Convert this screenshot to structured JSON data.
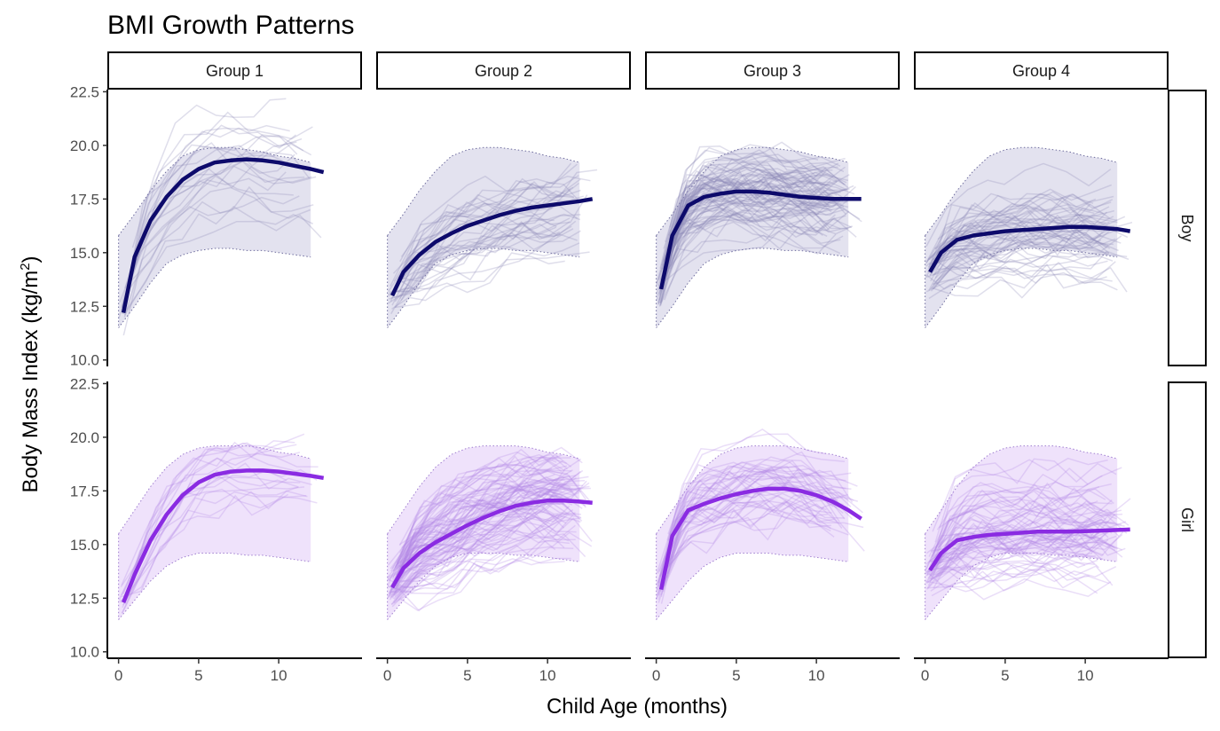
{
  "chart_data": {
    "type": "line",
    "title": "BMI Growth Patterns",
    "xlabel": "Child Age (months)",
    "ylabel": "Body Mass Index (kg/m",
    "ylabel_superscript": "2",
    "ylabel_suffix": ")",
    "xlim": [
      -0.7,
      15.2
    ],
    "ylim": [
      9.7,
      22.6
    ],
    "x_ticks": [
      0,
      5,
      10
    ],
    "x_tick_labels": [
      "0",
      "5",
      "10"
    ],
    "y_ticks": [
      10.0,
      12.5,
      15.0,
      17.5,
      20.0,
      22.5
    ],
    "y_tick_labels": [
      "10.0",
      "12.5",
      "15.0",
      "17.5",
      "20.0",
      "22.5"
    ],
    "grid": false,
    "columns": [
      "Group 1",
      "Group 2",
      "Group 3",
      "Group 4"
    ],
    "rows": [
      "Boy",
      "Girl"
    ],
    "colors": {
      "Boy": {
        "line": "#0d0a6b",
        "band": "#e3e2ef",
        "ind": "#8c8ab8",
        "dots": "#6f6d9e"
      },
      "Girl": {
        "line": "#8a2be2",
        "band": "#efe2fb",
        "ind": "#b58ae6",
        "dots": "#a07fd0"
      }
    },
    "individual_counts": [
      [
        22,
        35,
        80,
        55
      ],
      [
        18,
        90,
        45,
        70
      ]
    ],
    "band_x": [
      0,
      1,
      2,
      3,
      4,
      5,
      6,
      7,
      8,
      9,
      10,
      11,
      12
    ],
    "panels": [
      {
        "row": "Boy",
        "column": "Group 1",
        "band_upper": [
          15.8,
          16.8,
          17.9,
          18.8,
          19.5,
          19.8,
          19.9,
          19.9,
          19.8,
          19.7,
          19.5,
          19.4,
          19.2
        ],
        "band_lower": [
          11.5,
          12.5,
          13.6,
          14.5,
          14.9,
          15.1,
          15.2,
          15.2,
          15.1,
          15.1,
          15.0,
          14.9,
          14.8
        ],
        "mean_x": [
          0.3,
          1,
          2,
          3,
          4,
          5,
          6,
          7,
          8,
          9,
          10,
          11,
          12,
          12.8
        ],
        "mean_y": [
          12.2,
          14.8,
          16.5,
          17.6,
          18.4,
          18.9,
          19.2,
          19.3,
          19.35,
          19.3,
          19.2,
          19.05,
          18.9,
          18.75
        ]
      },
      {
        "row": "Boy",
        "column": "Group 2",
        "band_upper": [
          15.8,
          16.8,
          17.9,
          18.8,
          19.5,
          19.8,
          19.9,
          19.9,
          19.8,
          19.7,
          19.5,
          19.4,
          19.2
        ],
        "band_lower": [
          11.5,
          12.5,
          13.6,
          14.5,
          14.9,
          15.1,
          15.2,
          15.2,
          15.1,
          15.1,
          15.0,
          14.9,
          14.8
        ],
        "mean_x": [
          0.3,
          1,
          2,
          3,
          4,
          5,
          6,
          7,
          8,
          9,
          10,
          11,
          12,
          12.8
        ],
        "mean_y": [
          13.0,
          14.1,
          14.9,
          15.5,
          15.9,
          16.25,
          16.5,
          16.75,
          16.95,
          17.1,
          17.2,
          17.3,
          17.4,
          17.5
        ]
      },
      {
        "row": "Boy",
        "column": "Group 3",
        "band_upper": [
          15.8,
          16.8,
          17.9,
          18.8,
          19.5,
          19.8,
          19.9,
          19.9,
          19.8,
          19.7,
          19.5,
          19.4,
          19.2
        ],
        "band_lower": [
          11.5,
          12.5,
          13.6,
          14.5,
          14.9,
          15.1,
          15.2,
          15.2,
          15.1,
          15.1,
          15.0,
          14.9,
          14.8
        ],
        "mean_x": [
          0.3,
          1,
          2,
          3,
          4,
          5,
          6,
          7,
          8,
          9,
          10,
          11,
          12,
          12.8
        ],
        "mean_y": [
          13.3,
          15.8,
          17.2,
          17.6,
          17.75,
          17.85,
          17.85,
          17.8,
          17.7,
          17.6,
          17.55,
          17.5,
          17.5,
          17.5
        ]
      },
      {
        "row": "Boy",
        "column": "Group 4",
        "band_upper": [
          15.8,
          16.8,
          17.9,
          18.8,
          19.5,
          19.8,
          19.9,
          19.9,
          19.8,
          19.7,
          19.5,
          19.4,
          19.2
        ],
        "band_lower": [
          11.5,
          12.5,
          13.6,
          14.5,
          14.9,
          15.1,
          15.2,
          15.2,
          15.1,
          15.1,
          15.0,
          14.9,
          14.8
        ],
        "mean_x": [
          0.3,
          1,
          2,
          3,
          4,
          5,
          6,
          7,
          8,
          9,
          10,
          11,
          12,
          12.8
        ],
        "mean_y": [
          14.1,
          15.0,
          15.6,
          15.8,
          15.9,
          16.0,
          16.05,
          16.1,
          16.15,
          16.2,
          16.2,
          16.15,
          16.1,
          16.0
        ]
      },
      {
        "row": "Girl",
        "column": "Group 1",
        "band_upper": [
          15.5,
          16.6,
          17.7,
          18.6,
          19.2,
          19.5,
          19.6,
          19.6,
          19.6,
          19.5,
          19.3,
          19.2,
          19.0
        ],
        "band_lower": [
          11.5,
          12.4,
          13.3,
          14.0,
          14.4,
          14.6,
          14.6,
          14.6,
          14.5,
          14.5,
          14.4,
          14.3,
          14.2
        ],
        "mean_x": [
          0.3,
          1,
          2,
          3,
          4,
          5,
          6,
          7,
          8,
          9,
          10,
          11,
          12,
          12.8
        ],
        "mean_y": [
          12.3,
          13.6,
          15.2,
          16.4,
          17.3,
          17.9,
          18.25,
          18.4,
          18.45,
          18.45,
          18.4,
          18.3,
          18.2,
          18.1
        ]
      },
      {
        "row": "Girl",
        "column": "Group 2",
        "band_upper": [
          15.5,
          16.6,
          17.7,
          18.6,
          19.2,
          19.5,
          19.6,
          19.6,
          19.6,
          19.5,
          19.3,
          19.2,
          19.0
        ],
        "band_lower": [
          11.5,
          12.4,
          13.3,
          14.0,
          14.4,
          14.6,
          14.6,
          14.6,
          14.5,
          14.5,
          14.4,
          14.3,
          14.2
        ],
        "mean_x": [
          0.3,
          1,
          2,
          3,
          4,
          5,
          6,
          7,
          8,
          9,
          10,
          11,
          12,
          12.8
        ],
        "mean_y": [
          13.0,
          13.9,
          14.6,
          15.1,
          15.5,
          15.9,
          16.25,
          16.55,
          16.8,
          16.95,
          17.05,
          17.05,
          17.0,
          16.95
        ]
      },
      {
        "row": "Girl",
        "column": "Group 3",
        "band_upper": [
          15.5,
          16.6,
          17.7,
          18.6,
          19.2,
          19.5,
          19.6,
          19.6,
          19.6,
          19.5,
          19.3,
          19.2,
          19.0
        ],
        "band_lower": [
          11.5,
          12.4,
          13.3,
          14.0,
          14.4,
          14.6,
          14.6,
          14.6,
          14.5,
          14.5,
          14.4,
          14.3,
          14.2
        ],
        "mean_x": [
          0.3,
          1,
          2,
          3,
          4,
          5,
          6,
          7,
          8,
          9,
          10,
          11,
          12,
          12.8
        ],
        "mean_y": [
          12.9,
          15.4,
          16.6,
          16.9,
          17.15,
          17.35,
          17.5,
          17.6,
          17.6,
          17.5,
          17.3,
          17.0,
          16.6,
          16.2
        ]
      },
      {
        "row": "Girl",
        "column": "Group 4",
        "band_upper": [
          15.5,
          16.6,
          17.7,
          18.6,
          19.2,
          19.5,
          19.6,
          19.6,
          19.6,
          19.5,
          19.3,
          19.2,
          19.0
        ],
        "band_lower": [
          11.5,
          12.4,
          13.3,
          14.0,
          14.4,
          14.6,
          14.6,
          14.6,
          14.5,
          14.5,
          14.4,
          14.3,
          14.2
        ],
        "mean_x": [
          0.3,
          1,
          2,
          3,
          4,
          5,
          6,
          7,
          8,
          9,
          10,
          11,
          12,
          12.8
        ],
        "mean_y": [
          13.8,
          14.6,
          15.2,
          15.35,
          15.45,
          15.5,
          15.55,
          15.6,
          15.6,
          15.6,
          15.62,
          15.65,
          15.68,
          15.7
        ]
      }
    ]
  }
}
